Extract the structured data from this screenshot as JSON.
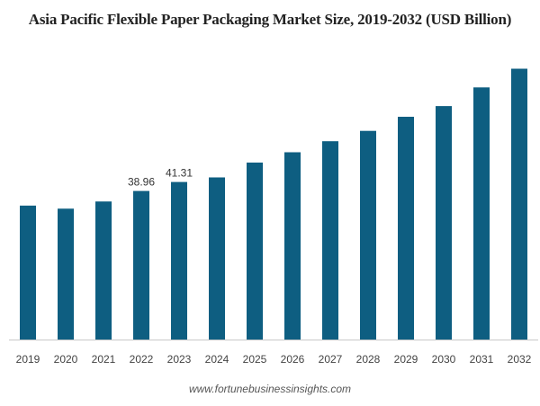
{
  "chart_data": {
    "type": "bar",
    "title": "Asia Pacific Flexible Paper Packaging Market Size, 2019-2032 (USD Billion)",
    "xlabel": "",
    "ylabel": "",
    "categories": [
      "2019",
      "2020",
      "2021",
      "2022",
      "2023",
      "2024",
      "2025",
      "2026",
      "2027",
      "2028",
      "2029",
      "2030",
      "2031",
      "2032"
    ],
    "values": [
      35.1,
      34.3,
      36.2,
      38.96,
      41.31,
      42.5,
      46.4,
      49.1,
      52.0,
      54.7,
      58.4,
      61.2,
      66.1,
      71.0
    ],
    "data_labels": [
      {
        "category": "2022",
        "text": "38.96"
      },
      {
        "category": "2023",
        "text": "41.31"
      }
    ],
    "ylim": [
      0,
      73
    ],
    "grid": false,
    "legend": "none",
    "bar_color": "#0e5e81",
    "baseline_color": "#c8c8c8"
  },
  "source": "www.fortunebusinessinsights.com"
}
